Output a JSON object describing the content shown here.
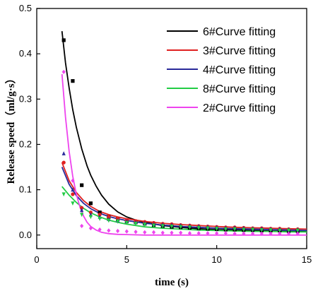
{
  "chart_data": {
    "type": "line",
    "xlabel": "time (s)",
    "ylabel": "Release speed（ml/g·s）",
    "xlim": [
      0,
      15
    ],
    "ylim": [
      -0.03,
      0.5
    ],
    "xticks": [
      0,
      5,
      10,
      15
    ],
    "yticks": [
      0.0,
      0.1,
      0.2,
      0.3,
      0.4,
      0.5
    ],
    "grid": false,
    "legend_position": "top-right",
    "series": [
      {
        "name": "6#Curve fitting",
        "color": "#000000",
        "marker": "square",
        "points": [
          [
            1.5,
            0.43
          ],
          [
            2.0,
            0.34
          ],
          [
            2.5,
            0.11
          ],
          [
            3.0,
            0.07
          ],
          [
            3.5,
            0.05
          ],
          [
            4.0,
            0.04
          ],
          [
            4.5,
            0.035
          ],
          [
            5.0,
            0.03
          ],
          [
            5.5,
            0.028
          ],
          [
            6.0,
            0.025
          ],
          [
            6.5,
            0.022
          ],
          [
            7.0,
            0.02
          ],
          [
            7.5,
            0.018
          ],
          [
            8.0,
            0.017
          ],
          [
            8.5,
            0.016
          ],
          [
            9.0,
            0.015
          ],
          [
            9.5,
            0.014
          ],
          [
            10.0,
            0.013
          ],
          [
            10.5,
            0.012
          ],
          [
            11.0,
            0.012
          ],
          [
            11.5,
            0.011
          ],
          [
            12.0,
            0.011
          ],
          [
            12.5,
            0.01
          ],
          [
            13.0,
            0.01
          ],
          [
            13.5,
            0.01
          ],
          [
            14.0,
            0.009
          ],
          [
            14.5,
            0.009
          ]
        ],
        "fit": [
          [
            1.4,
            0.45
          ],
          [
            1.6,
            0.38
          ],
          [
            1.8,
            0.325
          ],
          [
            2.0,
            0.277
          ],
          [
            2.2,
            0.238
          ],
          [
            2.5,
            0.19
          ],
          [
            2.8,
            0.152
          ],
          [
            3.0,
            0.132
          ],
          [
            3.3,
            0.108
          ],
          [
            3.6,
            0.088
          ],
          [
            4.0,
            0.068
          ],
          [
            4.5,
            0.051
          ],
          [
            5.0,
            0.04
          ],
          [
            5.5,
            0.033
          ],
          [
            6.0,
            0.028
          ],
          [
            7.0,
            0.021
          ],
          [
            8.0,
            0.017
          ],
          [
            9.0,
            0.014
          ],
          [
            10.0,
            0.012
          ],
          [
            11.0,
            0.011
          ],
          [
            12.0,
            0.01
          ],
          [
            13.0,
            0.009
          ],
          [
            14.0,
            0.008
          ],
          [
            15.0,
            0.008
          ]
        ]
      },
      {
        "name": "3#Curve fitting",
        "color": "#e02020",
        "marker": "circle",
        "points": [
          [
            1.5,
            0.16
          ],
          [
            2.0,
            0.09
          ],
          [
            2.5,
            0.06
          ],
          [
            3.0,
            0.05
          ],
          [
            3.5,
            0.045
          ],
          [
            4.0,
            0.04
          ],
          [
            4.5,
            0.036
          ],
          [
            5.0,
            0.033
          ],
          [
            5.5,
            0.031
          ],
          [
            6.0,
            0.029
          ],
          [
            6.5,
            0.027
          ],
          [
            7.0,
            0.025
          ],
          [
            7.5,
            0.024
          ],
          [
            8.0,
            0.022
          ],
          [
            8.5,
            0.021
          ],
          [
            9.0,
            0.02
          ],
          [
            9.5,
            0.019
          ],
          [
            10.0,
            0.018
          ],
          [
            10.5,
            0.017
          ],
          [
            11.0,
            0.017
          ],
          [
            11.5,
            0.016
          ],
          [
            12.0,
            0.015
          ],
          [
            12.5,
            0.015
          ],
          [
            13.0,
            0.014
          ],
          [
            13.5,
            0.014
          ],
          [
            14.0,
            0.013
          ],
          [
            14.5,
            0.013
          ]
        ],
        "fit": [
          [
            1.4,
            0.16
          ],
          [
            1.8,
            0.12
          ],
          [
            2.2,
            0.094
          ],
          [
            2.6,
            0.076
          ],
          [
            3.0,
            0.063
          ],
          [
            3.5,
            0.052
          ],
          [
            4.0,
            0.045
          ],
          [
            4.5,
            0.04
          ],
          [
            5.0,
            0.036
          ],
          [
            6.0,
            0.03
          ],
          [
            7.0,
            0.026
          ],
          [
            8.0,
            0.023
          ],
          [
            9.0,
            0.021
          ],
          [
            10.0,
            0.019
          ],
          [
            11.0,
            0.017
          ],
          [
            12.0,
            0.016
          ],
          [
            13.0,
            0.015
          ],
          [
            14.0,
            0.014
          ],
          [
            15.0,
            0.013
          ]
        ]
      },
      {
        "name": "4#Curve fitting",
        "color": "#2a2a9a",
        "marker": "triangle-up",
        "points": [
          [
            1.5,
            0.18
          ],
          [
            2.0,
            0.1
          ],
          [
            2.5,
            0.055
          ],
          [
            3.0,
            0.045
          ],
          [
            3.5,
            0.04
          ],
          [
            4.0,
            0.035
          ],
          [
            4.5,
            0.032
          ],
          [
            5.0,
            0.03
          ],
          [
            5.5,
            0.028
          ],
          [
            6.0,
            0.026
          ],
          [
            6.5,
            0.024
          ],
          [
            7.0,
            0.023
          ],
          [
            7.5,
            0.022
          ],
          [
            8.0,
            0.021
          ],
          [
            8.5,
            0.02
          ],
          [
            9.0,
            0.019
          ],
          [
            9.5,
            0.018
          ],
          [
            10.0,
            0.017
          ],
          [
            10.5,
            0.016
          ],
          [
            11.0,
            0.016
          ],
          [
            11.5,
            0.015
          ],
          [
            12.0,
            0.014
          ],
          [
            12.5,
            0.014
          ],
          [
            13.0,
            0.013
          ],
          [
            13.5,
            0.013
          ],
          [
            14.0,
            0.012
          ],
          [
            14.5,
            0.012
          ]
        ],
        "fit": [
          [
            1.4,
            0.15
          ],
          [
            1.8,
            0.112
          ],
          [
            2.2,
            0.087
          ],
          [
            2.6,
            0.07
          ],
          [
            3.0,
            0.058
          ],
          [
            3.5,
            0.048
          ],
          [
            4.0,
            0.041
          ],
          [
            4.5,
            0.036
          ],
          [
            5.0,
            0.032
          ],
          [
            6.0,
            0.026
          ],
          [
            7.0,
            0.022
          ],
          [
            8.0,
            0.019
          ],
          [
            9.0,
            0.017
          ],
          [
            10.0,
            0.015
          ],
          [
            11.0,
            0.014
          ],
          [
            12.0,
            0.013
          ],
          [
            13.0,
            0.012
          ],
          [
            14.0,
            0.011
          ],
          [
            15.0,
            0.01
          ]
        ]
      },
      {
        "name": "8#Curve fitting",
        "color": "#22cc44",
        "marker": "triangle-down",
        "points": [
          [
            1.5,
            0.09
          ],
          [
            2.0,
            0.07
          ],
          [
            2.5,
            0.045
          ],
          [
            3.0,
            0.04
          ],
          [
            3.5,
            0.036
          ],
          [
            4.0,
            0.032
          ],
          [
            4.5,
            0.03
          ],
          [
            5.0,
            0.027
          ],
          [
            5.5,
            0.025
          ],
          [
            6.0,
            0.023
          ],
          [
            6.5,
            0.021
          ],
          [
            7.0,
            0.02
          ],
          [
            7.5,
            0.019
          ],
          [
            8.0,
            0.018
          ],
          [
            8.5,
            0.017
          ],
          [
            9.0,
            0.016
          ],
          [
            9.5,
            0.015
          ],
          [
            10.0,
            0.014
          ],
          [
            10.5,
            0.013
          ],
          [
            11.0,
            0.013
          ],
          [
            11.5,
            0.012
          ],
          [
            12.0,
            0.012
          ],
          [
            12.5,
            0.011
          ],
          [
            13.0,
            0.011
          ],
          [
            13.5,
            0.01
          ],
          [
            14.0,
            0.01
          ],
          [
            14.5,
            0.01
          ]
        ],
        "fit": [
          [
            1.4,
            0.107
          ],
          [
            1.8,
            0.088
          ],
          [
            2.2,
            0.072
          ],
          [
            2.6,
            0.059
          ],
          [
            3.0,
            0.049
          ],
          [
            3.5,
            0.04
          ],
          [
            4.0,
            0.033
          ],
          [
            4.5,
            0.028
          ],
          [
            5.0,
            0.024
          ],
          [
            6.0,
            0.018
          ],
          [
            7.0,
            0.015
          ],
          [
            8.0,
            0.013
          ],
          [
            9.0,
            0.011
          ],
          [
            10.0,
            0.01
          ],
          [
            11.0,
            0.009
          ],
          [
            12.0,
            0.008
          ],
          [
            13.0,
            0.008
          ],
          [
            14.0,
            0.007
          ],
          [
            15.0,
            0.007
          ]
        ]
      },
      {
        "name": "2#Curve fitting",
        "color": "#ee44ee",
        "marker": "diamond",
        "points": [
          [
            1.5,
            0.36
          ],
          [
            2.0,
            0.12
          ],
          [
            2.5,
            0.02
          ],
          [
            3.0,
            0.015
          ],
          [
            3.5,
            0.012
          ],
          [
            4.0,
            0.01
          ],
          [
            4.5,
            0.009
          ],
          [
            5.0,
            0.008
          ],
          [
            5.5,
            0.007
          ],
          [
            6.0,
            0.006
          ],
          [
            6.5,
            0.006
          ],
          [
            7.0,
            0.005
          ],
          [
            7.5,
            0.005
          ],
          [
            8.0,
            0.005
          ],
          [
            8.5,
            0.004
          ],
          [
            9.0,
            0.004
          ],
          [
            9.5,
            0.004
          ],
          [
            10.0,
            0.004
          ],
          [
            10.5,
            0.004
          ],
          [
            11.0,
            0.003
          ],
          [
            11.5,
            0.003
          ],
          [
            12.0,
            0.003
          ],
          [
            12.5,
            0.003
          ],
          [
            13.0,
            0.003
          ],
          [
            13.5,
            0.003
          ],
          [
            14.0,
            0.003
          ],
          [
            14.5,
            0.003
          ]
        ],
        "fit": [
          [
            1.4,
            0.355
          ],
          [
            1.6,
            0.26
          ],
          [
            1.8,
            0.185
          ],
          [
            2.0,
            0.13
          ],
          [
            2.2,
            0.09
          ],
          [
            2.4,
            0.062
          ],
          [
            2.6,
            0.042
          ],
          [
            2.8,
            0.028
          ],
          [
            3.0,
            0.019
          ],
          [
            3.3,
            0.011
          ],
          [
            3.6,
            0.006
          ],
          [
            4.0,
            0.003
          ],
          [
            4.5,
            0.0015
          ],
          [
            5.0,
            0.001
          ],
          [
            6.0,
            0.0
          ],
          [
            8.0,
            0.0
          ],
          [
            10.0,
            0.0
          ],
          [
            12.0,
            0.0
          ],
          [
            15.0,
            0.0
          ]
        ]
      }
    ]
  }
}
